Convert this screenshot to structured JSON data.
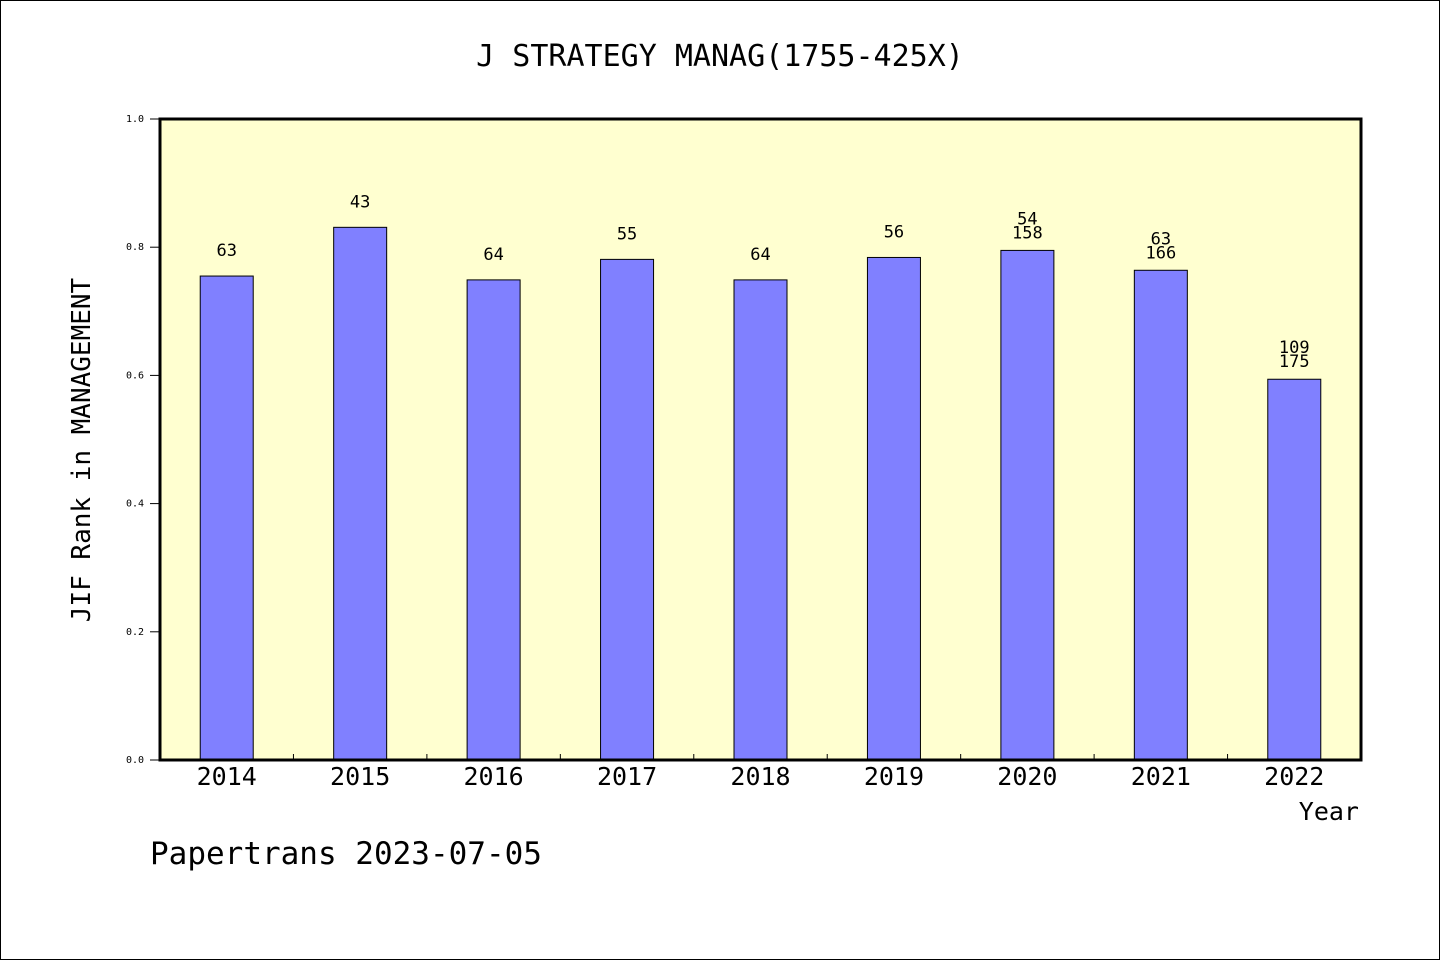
{
  "footer": {
    "text": "Papertrans 2023-07-05"
  },
  "chart_data": {
    "type": "bar",
    "title": "J STRATEGY MANAG(1755-425X)",
    "xlabel": "Year",
    "ylabel": "JIF Rank in MANAGEMENT",
    "ylim": [
      0,
      1.0
    ],
    "yticks": [
      "0.0",
      "0.2",
      "0.4",
      "0.6",
      "0.8",
      "1.0"
    ],
    "categories": [
      "2014",
      "2015",
      "2016",
      "2017",
      "2018",
      "2019",
      "2020",
      "2021",
      "2022"
    ],
    "values": [
      0.755,
      0.831,
      0.749,
      0.781,
      0.749,
      0.784,
      0.795,
      0.764,
      0.594
    ],
    "labels": [
      [
        "63"
      ],
      [
        "43"
      ],
      [
        "64"
      ],
      [
        "55"
      ],
      [
        "64"
      ],
      [
        "56"
      ],
      [
        "54",
        "158"
      ],
      [
        "63",
        "166"
      ],
      [
        "109",
        "175"
      ]
    ],
    "grid": false,
    "colors": {
      "bar": "#8080ff",
      "plot_background": "#ffffd0",
      "frame": "#000000"
    }
  }
}
